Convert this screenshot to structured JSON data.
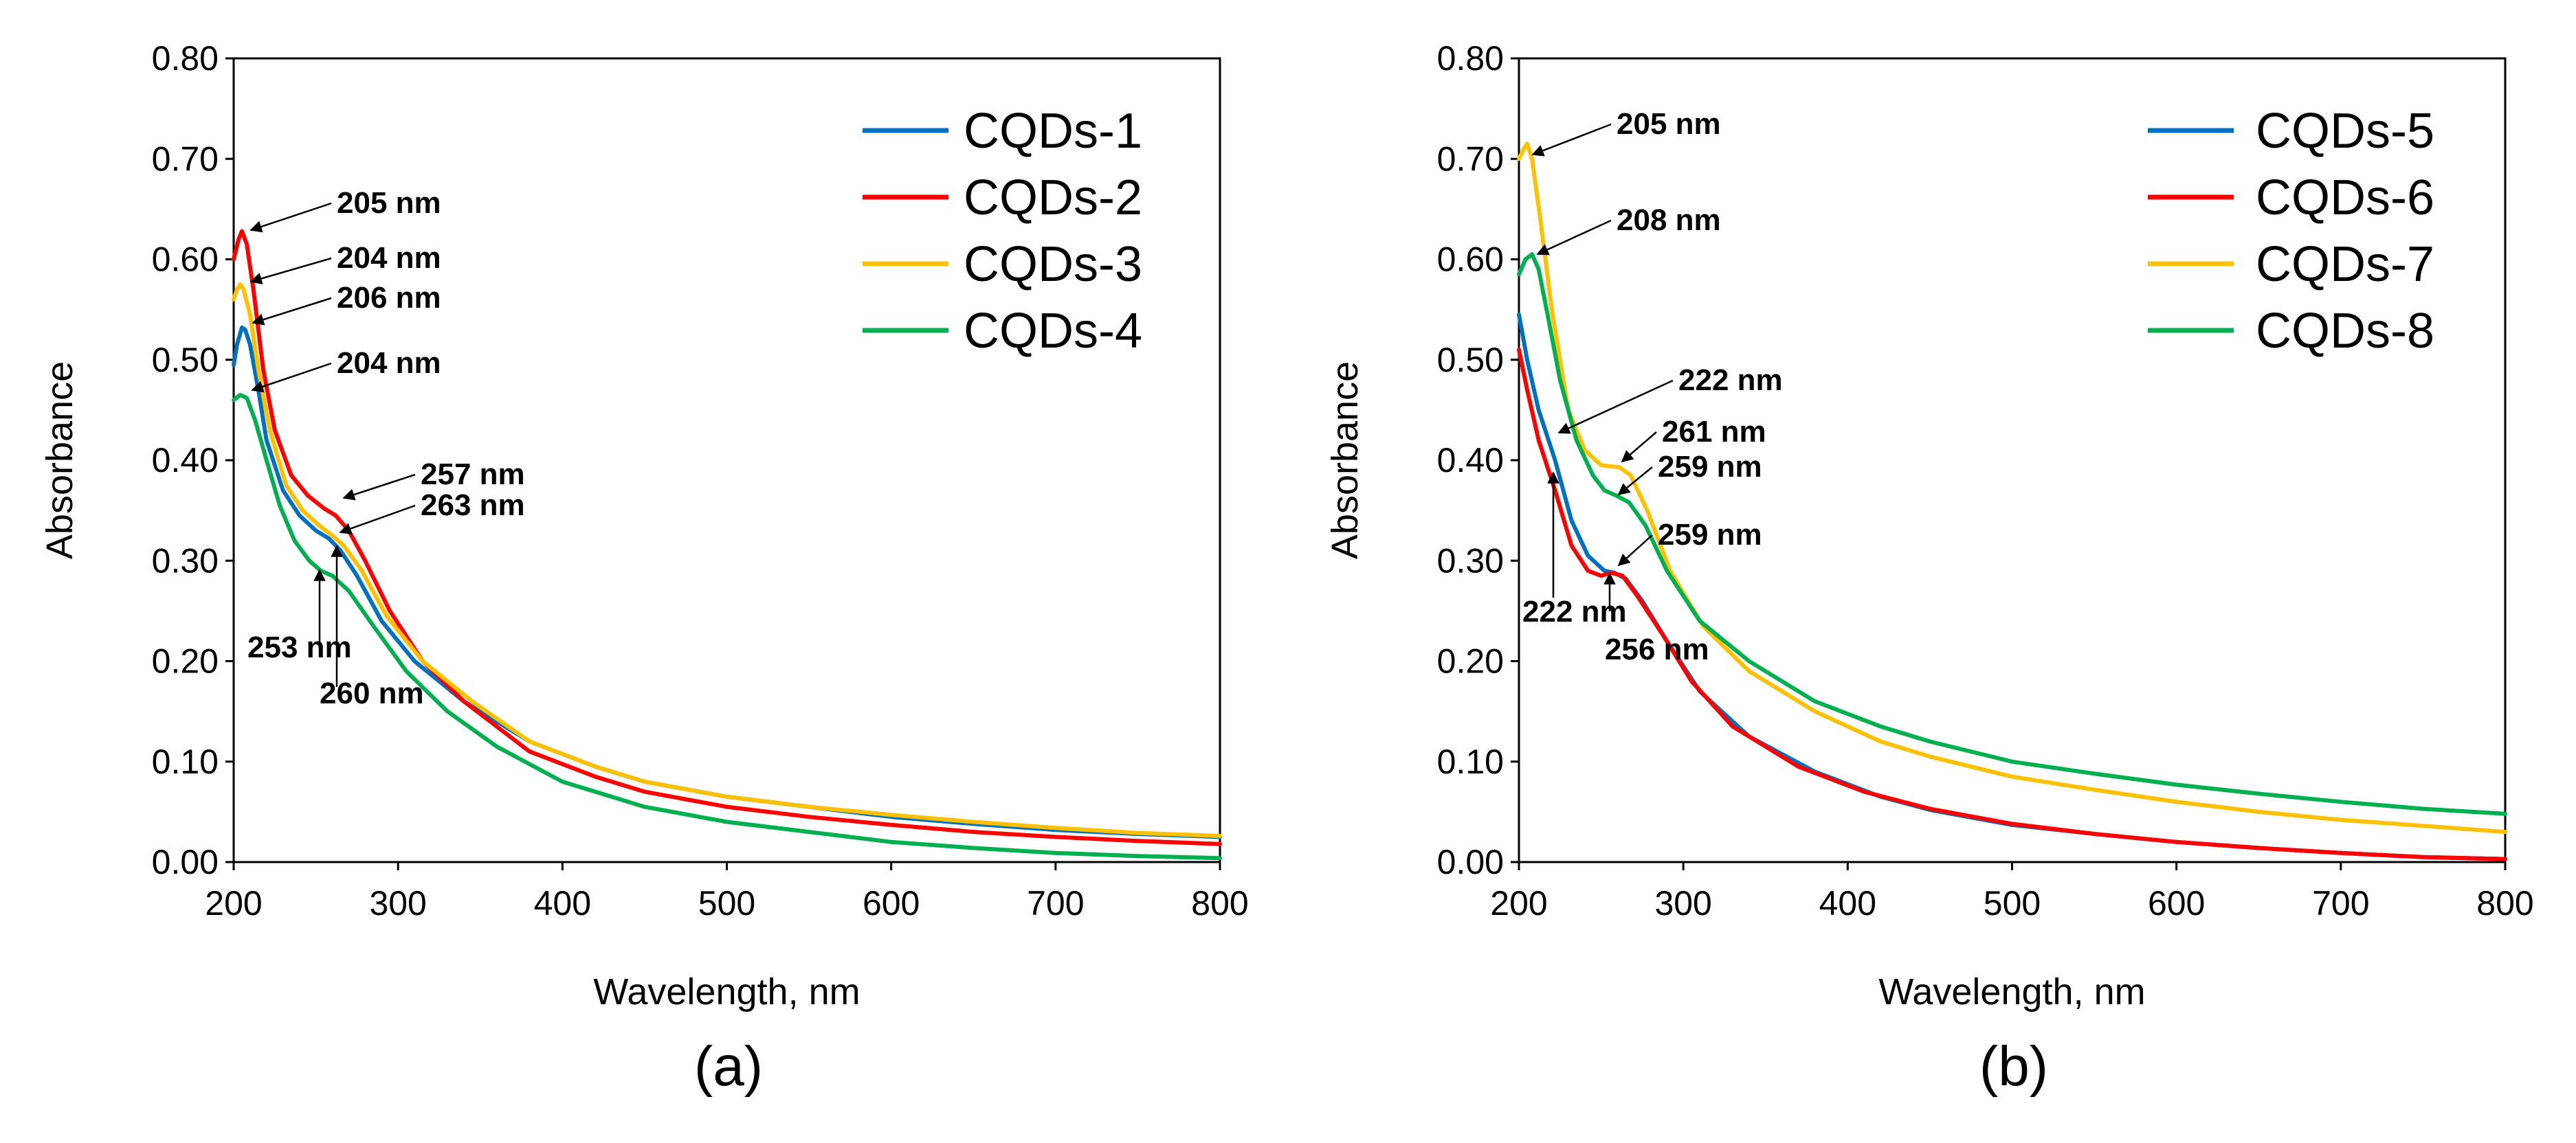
{
  "chart_data": [
    {
      "type": "line",
      "panel_label": "(a)",
      "xlabel": "Wavelength, nm",
      "ylabel": "Absorbance",
      "xlim": [
        200,
        800
      ],
      "ylim": [
        0,
        0.8
      ],
      "x_ticks": [
        "200",
        "300",
        "400",
        "500",
        "600",
        "700",
        "800"
      ],
      "y_ticks": [
        "0.00",
        "0.10",
        "0.20",
        "0.30",
        "0.40",
        "0.50",
        "0.60",
        "0.70",
        "0.80"
      ],
      "legend_position": "top-right",
      "series": [
        {
          "name": "CQDs-1",
          "color": "#0070C0",
          "points": [
            [
              200,
              0.495
            ],
            [
              202,
              0.515
            ],
            [
              205,
              0.532
            ],
            [
              207,
              0.53
            ],
            [
              210,
              0.515
            ],
            [
              215,
              0.47
            ],
            [
              220,
              0.42
            ],
            [
              230,
              0.37
            ],
            [
              240,
              0.345
            ],
            [
              250,
              0.33
            ],
            [
              258,
              0.322
            ],
            [
              265,
              0.31
            ],
            [
              275,
              0.285
            ],
            [
              290,
              0.24
            ],
            [
              310,
              0.2
            ],
            [
              340,
              0.16
            ],
            [
              380,
              0.12
            ],
            [
              420,
              0.095
            ],
            [
              450,
              0.08
            ],
            [
              500,
              0.065
            ],
            [
              550,
              0.055
            ],
            [
              600,
              0.045
            ],
            [
              650,
              0.038
            ],
            [
              700,
              0.032
            ],
            [
              750,
              0.028
            ],
            [
              800,
              0.025
            ]
          ]
        },
        {
          "name": "CQDs-2",
          "color": "#FF0000",
          "points": [
            [
              200,
              0.6
            ],
            [
              203,
              0.62
            ],
            [
              205,
              0.628
            ],
            [
              208,
              0.615
            ],
            [
              212,
              0.57
            ],
            [
              218,
              0.49
            ],
            [
              225,
              0.43
            ],
            [
              235,
              0.385
            ],
            [
              245,
              0.365
            ],
            [
              255,
              0.352
            ],
            [
              262,
              0.345
            ],
            [
              270,
              0.33
            ],
            [
              280,
              0.3
            ],
            [
              295,
              0.25
            ],
            [
              315,
              0.2
            ],
            [
              340,
              0.16
            ],
            [
              380,
              0.11
            ],
            [
              420,
              0.085
            ],
            [
              450,
              0.07
            ],
            [
              500,
              0.055
            ],
            [
              550,
              0.045
            ],
            [
              600,
              0.037
            ],
            [
              650,
              0.03
            ],
            [
              700,
              0.025
            ],
            [
              750,
              0.021
            ],
            [
              800,
              0.018
            ]
          ]
        },
        {
          "name": "CQDs-3",
          "color": "#FFC000",
          "points": [
            [
              200,
              0.56
            ],
            [
              202,
              0.57
            ],
            [
              204,
              0.575
            ],
            [
              206,
              0.57
            ],
            [
              210,
              0.545
            ],
            [
              215,
              0.49
            ],
            [
              222,
              0.43
            ],
            [
              232,
              0.375
            ],
            [
              242,
              0.35
            ],
            [
              252,
              0.335
            ],
            [
              260,
              0.325
            ],
            [
              267,
              0.315
            ],
            [
              278,
              0.29
            ],
            [
              293,
              0.245
            ],
            [
              315,
              0.2
            ],
            [
              345,
              0.16
            ],
            [
              380,
              0.12
            ],
            [
              420,
              0.095
            ],
            [
              450,
              0.08
            ],
            [
              500,
              0.065
            ],
            [
              550,
              0.055
            ],
            [
              600,
              0.047
            ],
            [
              650,
              0.04
            ],
            [
              700,
              0.034
            ],
            [
              750,
              0.029
            ],
            [
              800,
              0.026
            ]
          ]
        },
        {
          "name": "CQDs-4",
          "color": "#00B050",
          "points": [
            [
              200,
              0.46
            ],
            [
              204,
              0.465
            ],
            [
              208,
              0.462
            ],
            [
              213,
              0.44
            ],
            [
              220,
              0.4
            ],
            [
              228,
              0.355
            ],
            [
              237,
              0.32
            ],
            [
              246,
              0.3
            ],
            [
              253,
              0.29
            ],
            [
              260,
              0.285
            ],
            [
              270,
              0.27
            ],
            [
              285,
              0.235
            ],
            [
              305,
              0.19
            ],
            [
              330,
              0.15
            ],
            [
              360,
              0.115
            ],
            [
              400,
              0.08
            ],
            [
              450,
              0.055
            ],
            [
              500,
              0.04
            ],
            [
              550,
              0.03
            ],
            [
              600,
              0.02
            ],
            [
              650,
              0.014
            ],
            [
              700,
              0.009
            ],
            [
              750,
              0.006
            ],
            [
              800,
              0.004
            ]
          ]
        }
      ],
      "annotations": [
        {
          "text": "205 nm",
          "x": 205,
          "y": 0.628
        },
        {
          "text": "204 nm",
          "x": 204,
          "y": 0.575
        },
        {
          "text": "206 nm",
          "x": 206,
          "y": 0.532
        },
        {
          "text": "204 nm",
          "x": 204,
          "y": 0.465
        },
        {
          "text": "257 nm",
          "x": 257,
          "y": 0.352
        },
        {
          "text": "263 nm",
          "x": 263,
          "y": 0.325
        },
        {
          "text": "253 nm",
          "x": 253,
          "y": 0.29
        },
        {
          "text": "260 nm",
          "x": 260,
          "y": 0.31
        }
      ]
    },
    {
      "type": "line",
      "panel_label": "(b)",
      "xlabel": "Wavelength, nm",
      "ylabel": "Absorbance",
      "xlim": [
        200,
        800
      ],
      "ylim": [
        0,
        0.8
      ],
      "x_ticks": [
        "200",
        "300",
        "400",
        "500",
        "600",
        "700",
        "800"
      ],
      "y_ticks": [
        "0.00",
        "0.10",
        "0.20",
        "0.30",
        "0.40",
        "0.50",
        "0.60",
        "0.70",
        "0.80"
      ],
      "legend_position": "top-right",
      "series": [
        {
          "name": "CQDs-5",
          "color": "#0070C0",
          "points": [
            [
              200,
              0.545
            ],
            [
              205,
              0.5
            ],
            [
              212,
              0.45
            ],
            [
              222,
              0.4
            ],
            [
              232,
              0.34
            ],
            [
              242,
              0.305
            ],
            [
              252,
              0.29
            ],
            [
              258,
              0.288
            ],
            [
              265,
              0.282
            ],
            [
              275,
              0.26
            ],
            [
              290,
              0.22
            ],
            [
              310,
              0.17
            ],
            [
              340,
              0.125
            ],
            [
              380,
              0.09
            ],
            [
              420,
              0.065
            ],
            [
              450,
              0.052
            ],
            [
              500,
              0.037
            ],
            [
              550,
              0.028
            ],
            [
              600,
              0.02
            ],
            [
              650,
              0.014
            ],
            [
              700,
              0.009
            ],
            [
              750,
              0.005
            ],
            [
              800,
              0.003
            ]
          ]
        },
        {
          "name": "CQDs-6",
          "color": "#FF0000",
          "points": [
            [
              200,
              0.51
            ],
            [
              205,
              0.47
            ],
            [
              212,
              0.42
            ],
            [
              222,
              0.37
            ],
            [
              232,
              0.315
            ],
            [
              242,
              0.29
            ],
            [
              250,
              0.285
            ],
            [
              256,
              0.288
            ],
            [
              263,
              0.285
            ],
            [
              272,
              0.265
            ],
            [
              288,
              0.225
            ],
            [
              305,
              0.18
            ],
            [
              330,
              0.135
            ],
            [
              370,
              0.095
            ],
            [
              410,
              0.07
            ],
            [
              450,
              0.053
            ],
            [
              500,
              0.038
            ],
            [
              550,
              0.028
            ],
            [
              600,
              0.02
            ],
            [
              650,
              0.014
            ],
            [
              700,
              0.009
            ],
            [
              750,
              0.005
            ],
            [
              800,
              0.003
            ]
          ]
        },
        {
          "name": "CQDs-7",
          "color": "#FFC000",
          "points": [
            [
              200,
              0.7
            ],
            [
              203,
              0.71
            ],
            [
              205,
              0.715
            ],
            [
              208,
              0.7
            ],
            [
              213,
              0.64
            ],
            [
              220,
              0.55
            ],
            [
              230,
              0.45
            ],
            [
              240,
              0.41
            ],
            [
              250,
              0.395
            ],
            [
              261,
              0.393
            ],
            [
              268,
              0.385
            ],
            [
              278,
              0.35
            ],
            [
              292,
              0.29
            ],
            [
              312,
              0.235
            ],
            [
              340,
              0.19
            ],
            [
              380,
              0.15
            ],
            [
              420,
              0.12
            ],
            [
              450,
              0.105
            ],
            [
              500,
              0.085
            ],
            [
              550,
              0.072
            ],
            [
              600,
              0.06
            ],
            [
              650,
              0.05
            ],
            [
              700,
              0.042
            ],
            [
              750,
              0.036
            ],
            [
              800,
              0.03
            ]
          ]
        },
        {
          "name": "CQDs-8",
          "color": "#00B050",
          "points": [
            [
              200,
              0.585
            ],
            [
              204,
              0.6
            ],
            [
              208,
              0.605
            ],
            [
              212,
              0.59
            ],
            [
              218,
              0.54
            ],
            [
              225,
              0.48
            ],
            [
              235,
              0.42
            ],
            [
              245,
              0.385
            ],
            [
              252,
              0.37
            ],
            [
              259,
              0.365
            ],
            [
              267,
              0.358
            ],
            [
              277,
              0.335
            ],
            [
              290,
              0.29
            ],
            [
              310,
              0.24
            ],
            [
              340,
              0.2
            ],
            [
              380,
              0.16
            ],
            [
              420,
              0.135
            ],
            [
              450,
              0.12
            ],
            [
              500,
              0.1
            ],
            [
              550,
              0.088
            ],
            [
              600,
              0.077
            ],
            [
              650,
              0.068
            ],
            [
              700,
              0.06
            ],
            [
              750,
              0.053
            ],
            [
              800,
              0.048
            ]
          ]
        }
      ],
      "annotations": [
        {
          "text": "205 nm",
          "x": 205,
          "y": 0.715
        },
        {
          "text": "208 nm",
          "x": 208,
          "y": 0.605
        },
        {
          "text": "222 nm",
          "x": 222,
          "y": 0.42
        },
        {
          "text": "261 nm",
          "x": 261,
          "y": 0.393
        },
        {
          "text": "259 nm",
          "x": 259,
          "y": 0.365
        },
        {
          "text": "259 nm",
          "x": 259,
          "y": 0.288
        },
        {
          "text": "222 nm",
          "x": 222,
          "y": 0.385
        },
        {
          "text": "256 nm",
          "x": 256,
          "y": 0.288
        }
      ]
    }
  ]
}
